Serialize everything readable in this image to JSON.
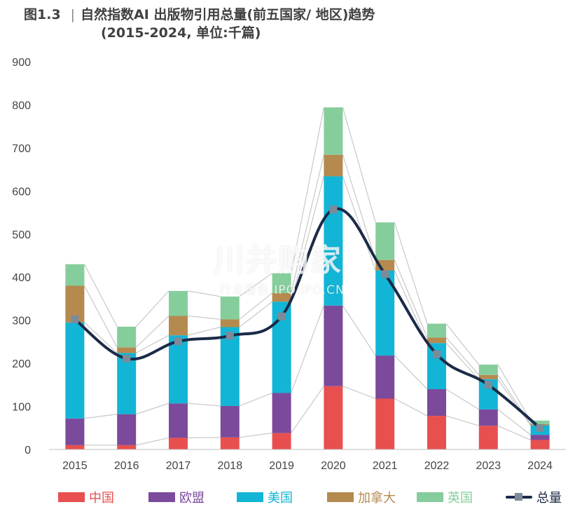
{
  "header": {
    "figure_no": "图1.3",
    "separator": "|",
    "title": "自然指数AI 出版物引用总量(前五国家/ 地区)趋势",
    "subtitle": "(2015-2024, 单位:千篇)"
  },
  "watermark": {
    "main": "川并购家",
    "sub": "行业报告 IPO.IPO.CN"
  },
  "chart_data": {
    "type": "bar",
    "stacked": true,
    "categories": [
      "2015",
      "2016",
      "2017",
      "2018",
      "2019",
      "2020",
      "2021",
      "2022",
      "2023",
      "2024"
    ],
    "ylim": [
      0,
      900
    ],
    "yticks": [
      0,
      100,
      200,
      300,
      400,
      500,
      600,
      700,
      800,
      900
    ],
    "grid": false,
    "legend_position": "bottom",
    "series": [
      {
        "name": "中国",
        "color": "#e8504f",
        "values": [
          10,
          10,
          27,
          28,
          38,
          147,
          118,
          78,
          55,
          22
        ]
      },
      {
        "name": "欧盟",
        "color": "#7b4a9b",
        "values": [
          62,
          72,
          80,
          73,
          93,
          187,
          100,
          62,
          38,
          12
        ]
      },
      {
        "name": "美国",
        "color": "#12b5d6",
        "values": [
          223,
          142,
          158,
          183,
          212,
          300,
          197,
          107,
          70,
          22
        ]
      },
      {
        "name": "加拿大",
        "color": "#b48a4f",
        "values": [
          85,
          13,
          45,
          18,
          20,
          50,
          25,
          13,
          10,
          3
        ]
      },
      {
        "name": "英国",
        "color": "#86cd9c",
        "values": [
          50,
          48,
          58,
          53,
          46,
          110,
          87,
          32,
          24,
          8
        ]
      }
    ],
    "line_series": {
      "name": "总量",
      "color": "#1b2a47",
      "marker_color": "#7d8a98",
      "values": [
        302,
        211,
        251,
        264,
        309,
        557,
        407,
        221,
        150,
        50
      ]
    }
  }
}
